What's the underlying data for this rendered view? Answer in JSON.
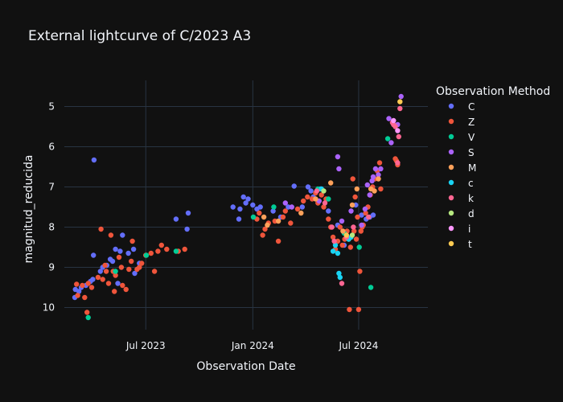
{
  "chart_data": {
    "type": "scatter",
    "title": "External lightcurve of C/2023 A3",
    "xlabel": "Observation Date",
    "ylabel": "magnitud_reducida",
    "y_reversed": true,
    "ylim": [
      10.55,
      4.35
    ],
    "xlim": [
      "2023-02-11",
      "2024-10-28"
    ],
    "x_ticks": [
      {
        "date": "2023-07-01",
        "label": "Jul 2023"
      },
      {
        "date": "2024-01-01",
        "label": "Jan 2024"
      },
      {
        "date": "2024-07-01",
        "label": "Jul 2024"
      }
    ],
    "y_ticks": [
      5,
      6,
      7,
      8,
      9,
      10
    ],
    "grid": true,
    "legend_title": "Observation Method",
    "legend_position": "right",
    "series": [
      {
        "name": "C",
        "color": "#636efa",
        "points": [
          [
            "2023-03-01",
            9.75
          ],
          [
            "2023-03-02",
            9.55
          ],
          [
            "2023-03-08",
            9.6
          ],
          [
            "2023-03-12",
            9.5
          ],
          [
            "2023-03-20",
            9.45
          ],
          [
            "2023-03-28",
            9.35
          ],
          [
            "2023-04-01",
            9.3
          ],
          [
            "2023-04-03",
            6.33
          ],
          [
            "2023-04-02",
            8.7
          ],
          [
            "2023-04-14",
            9.1
          ],
          [
            "2023-04-18",
            9.0
          ],
          [
            "2023-04-25",
            8.95
          ],
          [
            "2023-05-01",
            8.8
          ],
          [
            "2023-05-05",
            8.85
          ],
          [
            "2023-05-10",
            8.55
          ],
          [
            "2023-05-18",
            8.6
          ],
          [
            "2023-05-22",
            8.2
          ],
          [
            "2023-06-01",
            8.65
          ],
          [
            "2023-06-10",
            8.55
          ],
          [
            "2023-06-20",
            8.9
          ],
          [
            "2023-06-12",
            9.15
          ],
          [
            "2023-05-14",
            9.4
          ],
          [
            "2023-08-22",
            7.8
          ],
          [
            "2023-09-12",
            7.65
          ],
          [
            "2023-09-10",
            8.05
          ],
          [
            "2023-11-28",
            7.5
          ],
          [
            "2023-12-08",
            7.8
          ],
          [
            "2023-12-10",
            7.55
          ],
          [
            "2023-12-16",
            7.25
          ],
          [
            "2023-12-20",
            7.4
          ],
          [
            "2023-12-24",
            7.3
          ],
          [
            "2024-01-01",
            7.45
          ],
          [
            "2024-01-08",
            7.55
          ],
          [
            "2024-01-14",
            7.5
          ],
          [
            "2024-02-05",
            7.6
          ],
          [
            "2024-02-18",
            7.75
          ],
          [
            "2024-03-02",
            7.5
          ],
          [
            "2024-03-12",
            6.98
          ],
          [
            "2024-03-26",
            7.5
          ],
          [
            "2024-04-05",
            7.0
          ],
          [
            "2024-04-10",
            7.1
          ],
          [
            "2024-04-14",
            7.25
          ],
          [
            "2024-04-26",
            7.05
          ],
          [
            "2024-05-10",
            7.6
          ],
          [
            "2024-05-26",
            7.95
          ],
          [
            "2024-06-06",
            8.45
          ],
          [
            "2024-06-26",
            7.45
          ],
          [
            "2024-07-06",
            7.7
          ],
          [
            "2024-07-14",
            7.8
          ],
          [
            "2024-07-20",
            7.75
          ],
          [
            "2024-07-26",
            7.7
          ]
        ]
      },
      {
        "name": "Z",
        "color": "#ef553b",
        "points": [
          [
            "2023-03-04",
            9.42
          ],
          [
            "2023-03-06",
            9.7
          ],
          [
            "2023-03-14",
            9.45
          ],
          [
            "2023-03-18",
            9.75
          ],
          [
            "2023-03-22",
            10.12
          ],
          [
            "2023-03-24",
            9.4
          ],
          [
            "2023-03-30",
            9.5
          ],
          [
            "2023-04-10",
            9.25
          ],
          [
            "2023-04-15",
            8.05
          ],
          [
            "2023-04-18",
            9.3
          ],
          [
            "2023-04-22",
            8.95
          ],
          [
            "2023-04-24",
            9.1
          ],
          [
            "2023-04-28",
            9.4
          ],
          [
            "2023-05-02",
            8.2
          ],
          [
            "2023-05-06",
            9.1
          ],
          [
            "2023-05-08",
            9.6
          ],
          [
            "2023-05-10",
            9.2
          ],
          [
            "2023-05-16",
            8.75
          ],
          [
            "2023-05-20",
            9.0
          ],
          [
            "2023-05-22",
            9.45
          ],
          [
            "2023-05-28",
            9.55
          ],
          [
            "2023-06-02",
            9.05
          ],
          [
            "2023-06-06",
            8.85
          ],
          [
            "2023-06-08",
            8.35
          ],
          [
            "2023-06-16",
            9.05
          ],
          [
            "2023-06-20",
            9.0
          ],
          [
            "2023-06-24",
            8.9
          ],
          [
            "2023-07-01",
            8.7
          ],
          [
            "2023-07-10",
            8.65
          ],
          [
            "2023-07-16",
            9.1
          ],
          [
            "2023-07-22",
            8.6
          ],
          [
            "2023-07-28",
            8.45
          ],
          [
            "2023-08-06",
            8.55
          ],
          [
            "2023-08-26",
            8.6
          ],
          [
            "2023-09-06",
            8.55
          ],
          [
            "2024-01-08",
            7.8
          ],
          [
            "2024-01-12",
            7.65
          ],
          [
            "2024-01-18",
            8.2
          ],
          [
            "2024-01-22",
            8.05
          ],
          [
            "2024-01-28",
            7.9
          ],
          [
            "2024-02-08",
            7.85
          ],
          [
            "2024-02-14",
            8.35
          ],
          [
            "2024-02-22",
            7.75
          ],
          [
            "2024-02-26",
            7.6
          ],
          [
            "2024-03-06",
            7.9
          ],
          [
            "2024-03-18",
            7.55
          ],
          [
            "2024-03-28",
            7.35
          ],
          [
            "2024-04-04",
            7.25
          ],
          [
            "2024-04-12",
            7.3
          ],
          [
            "2024-04-18",
            7.15
          ],
          [
            "2024-04-22",
            7.4
          ],
          [
            "2024-04-28",
            7.2
          ],
          [
            "2024-05-02",
            7.5
          ],
          [
            "2024-05-06",
            7.3
          ],
          [
            "2024-05-10",
            7.8
          ],
          [
            "2024-05-14",
            8.0
          ],
          [
            "2024-05-18",
            8.25
          ],
          [
            "2024-05-22",
            8.55
          ],
          [
            "2024-05-26",
            8.35
          ],
          [
            "2024-05-30",
            8.0
          ],
          [
            "2024-06-03",
            8.45
          ],
          [
            "2024-06-07",
            8.3
          ],
          [
            "2024-06-11",
            8.1
          ],
          [
            "2024-06-15",
            10.05
          ],
          [
            "2024-06-17",
            8.5
          ],
          [
            "2024-06-21",
            6.8
          ],
          [
            "2024-06-23",
            8.1
          ],
          [
            "2024-06-25",
            7.25
          ],
          [
            "2024-06-27",
            8.3
          ],
          [
            "2024-06-29",
            7.75
          ],
          [
            "2024-07-01",
            10.05
          ],
          [
            "2024-07-03",
            9.1
          ],
          [
            "2024-07-05",
            8.1
          ],
          [
            "2024-07-07",
            8.0
          ],
          [
            "2024-07-09",
            7.95
          ],
          [
            "2024-07-13",
            7.65
          ],
          [
            "2024-07-17",
            7.5
          ],
          [
            "2024-07-21",
            7.2
          ],
          [
            "2024-07-25",
            7.0
          ],
          [
            "2024-07-29",
            6.8
          ],
          [
            "2024-08-02",
            6.6
          ],
          [
            "2024-08-06",
            6.4
          ],
          [
            "2024-08-08",
            7.05
          ],
          [
            "2024-09-02",
            6.3
          ],
          [
            "2024-09-04",
            6.35
          ],
          [
            "2024-09-06",
            6.45
          ]
        ]
      },
      {
        "name": "V",
        "color": "#00cc96",
        "points": [
          [
            "2023-03-24",
            10.25
          ],
          [
            "2023-05-10",
            9.1
          ],
          [
            "2023-07-02",
            8.7
          ],
          [
            "2023-08-22",
            8.6
          ],
          [
            "2024-01-02",
            7.75
          ],
          [
            "2024-02-06",
            7.5
          ],
          [
            "2024-04-22",
            7.05
          ],
          [
            "2024-05-10",
            7.3
          ],
          [
            "2024-06-06",
            8.15
          ],
          [
            "2024-07-02",
            8.5
          ],
          [
            "2024-07-22",
            9.5
          ],
          [
            "2024-08-20",
            5.8
          ]
        ]
      },
      {
        "name": "S",
        "color": "#ab63fa",
        "points": [
          [
            "2024-02-26",
            7.4
          ],
          [
            "2024-03-08",
            7.5
          ],
          [
            "2024-04-24",
            7.35
          ],
          [
            "2024-05-26",
            6.25
          ],
          [
            "2024-05-28",
            6.55
          ],
          [
            "2024-06-02",
            7.85
          ],
          [
            "2024-06-18",
            7.6
          ],
          [
            "2024-07-06",
            7.95
          ],
          [
            "2024-07-12",
            7.55
          ],
          [
            "2024-07-16",
            6.95
          ],
          [
            "2024-07-20",
            7.2
          ],
          [
            "2024-07-24",
            6.85
          ],
          [
            "2024-07-26",
            6.75
          ],
          [
            "2024-07-30",
            6.55
          ],
          [
            "2024-08-04",
            6.7
          ],
          [
            "2024-08-08",
            6.55
          ],
          [
            "2024-08-22",
            5.3
          ],
          [
            "2024-08-26",
            5.9
          ],
          [
            "2024-09-06",
            5.45
          ],
          [
            "2024-09-12",
            4.75
          ]
        ]
      },
      {
        "name": "M",
        "color": "#ffa15a",
        "points": [
          [
            "2024-01-20",
            7.75
          ],
          [
            "2024-01-26",
            7.95
          ],
          [
            "2024-02-14",
            7.85
          ],
          [
            "2024-03-24",
            7.65
          ],
          [
            "2024-04-18",
            7.3
          ],
          [
            "2024-05-14",
            6.9
          ],
          [
            "2024-06-04",
            8.1
          ],
          [
            "2024-06-14",
            8.3
          ],
          [
            "2024-06-20",
            7.45
          ],
          [
            "2024-06-28",
            7.05
          ],
          [
            "2024-07-22",
            7.05
          ],
          [
            "2024-07-28",
            7.1
          ],
          [
            "2024-08-04",
            6.8
          ]
        ]
      },
      {
        "name": "c",
        "color": "#19d3f3",
        "points": [
          [
            "2024-04-28",
            7.05
          ],
          [
            "2024-05-18",
            8.6
          ],
          [
            "2024-05-22",
            8.45
          ],
          [
            "2024-05-26",
            8.65
          ],
          [
            "2024-05-28",
            9.15
          ],
          [
            "2024-05-30",
            9.25
          ],
          [
            "2024-06-14",
            8.3
          ],
          [
            "2024-06-18",
            8.25
          ]
        ]
      },
      {
        "name": "k",
        "color": "#ff6692",
        "points": [
          [
            "2024-04-20",
            7.1
          ],
          [
            "2024-05-04",
            7.4
          ],
          [
            "2024-05-16",
            8.0
          ],
          [
            "2024-05-20",
            8.35
          ],
          [
            "2024-06-02",
            9.4
          ],
          [
            "2024-06-10",
            8.25
          ],
          [
            "2024-06-22",
            8.0
          ],
          [
            "2024-07-18",
            7.75
          ],
          [
            "2024-08-28",
            5.4
          ],
          [
            "2024-08-30",
            5.45
          ],
          [
            "2024-09-02",
            5.5
          ],
          [
            "2024-09-06",
            6.4
          ],
          [
            "2024-09-08",
            5.75
          ],
          [
            "2024-09-10",
            5.05
          ]
        ]
      },
      {
        "name": "d",
        "color": "#b6e880",
        "points": [
          [
            "2024-05-02",
            7.1
          ],
          [
            "2024-06-20",
            8.2
          ]
        ]
      },
      {
        "name": "i",
        "color": "#ff97ff",
        "points": [
          [
            "2024-08-30",
            5.35
          ],
          [
            "2024-09-06",
            5.6
          ]
        ]
      },
      {
        "name": "t",
        "color": "#fecb52",
        "points": [
          [
            "2024-09-10",
            4.88
          ],
          [
            "2024-06-10",
            8.2
          ]
        ]
      }
    ]
  }
}
